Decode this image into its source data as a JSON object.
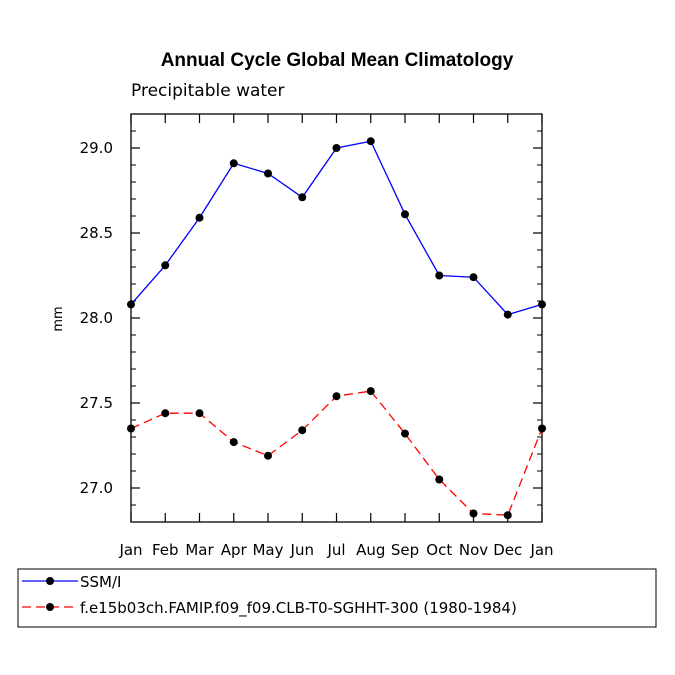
{
  "chart_data": {
    "type": "line",
    "title": "Annual Cycle Global Mean Climatology",
    "subtitle": "Precipitable water",
    "xlabel": "",
    "ylabel": "mm",
    "categories": [
      "Jan",
      "Feb",
      "Mar",
      "Apr",
      "May",
      "Jun",
      "Jul",
      "Aug",
      "Sep",
      "Oct",
      "Nov",
      "Dec",
      "Jan"
    ],
    "ylim": [
      26.8,
      29.2
    ],
    "yticks": [
      "27.0",
      "27.5",
      "28.0",
      "28.5",
      "29.0"
    ],
    "ytick_values": [
      27.0,
      27.5,
      28.0,
      28.5,
      29.0
    ],
    "grid": false,
    "legend_position": "bottom-left",
    "series": [
      {
        "name": "SSM/I",
        "color": "#0000ff",
        "style": "solid",
        "values": [
          28.08,
          28.31,
          28.59,
          28.91,
          28.85,
          28.71,
          29.0,
          29.04,
          28.61,
          28.25,
          28.24,
          28.02,
          28.08
        ]
      },
      {
        "name": "f.e15b03ch.FAMIP.f09_f09.CLB-T0-SGHHT-300 (1980-1984)",
        "color": "#ff0000",
        "style": "dashed",
        "values": [
          27.35,
          27.44,
          27.44,
          27.27,
          27.19,
          27.34,
          27.54,
          27.57,
          27.32,
          27.05,
          26.85,
          26.84,
          27.35
        ]
      }
    ]
  }
}
